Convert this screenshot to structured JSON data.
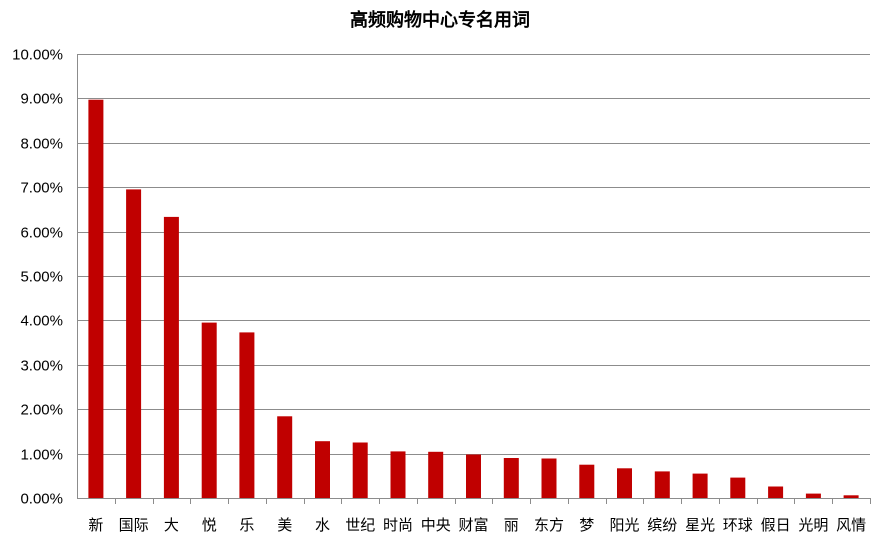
{
  "chart_data": {
    "type": "bar",
    "title": "高频购物中心专名用词",
    "xlabel": "",
    "ylabel": "",
    "ylim": [
      0,
      10
    ],
    "y_unit": "%",
    "y_ticks": [
      "0.00%",
      "1.00%",
      "2.00%",
      "3.00%",
      "4.00%",
      "5.00%",
      "6.00%",
      "7.00%",
      "8.00%",
      "9.00%",
      "10.00%"
    ],
    "grid": true,
    "legend": "none",
    "bar_color": "#c00000",
    "categories": [
      "新",
      "国际",
      "大",
      "悦",
      "乐",
      "美",
      "水",
      "世纪",
      "时尚",
      "中央",
      "财富",
      "丽",
      "东方",
      "梦",
      "阳光",
      "缤纷",
      "星光",
      "环球",
      "假日",
      "光明",
      "风情"
    ],
    "values": [
      8.97,
      6.95,
      6.33,
      3.95,
      3.73,
      1.84,
      1.28,
      1.25,
      1.05,
      1.04,
      0.98,
      0.9,
      0.89,
      0.75,
      0.67,
      0.6,
      0.55,
      0.46,
      0.26,
      0.1,
      0.06
    ]
  }
}
